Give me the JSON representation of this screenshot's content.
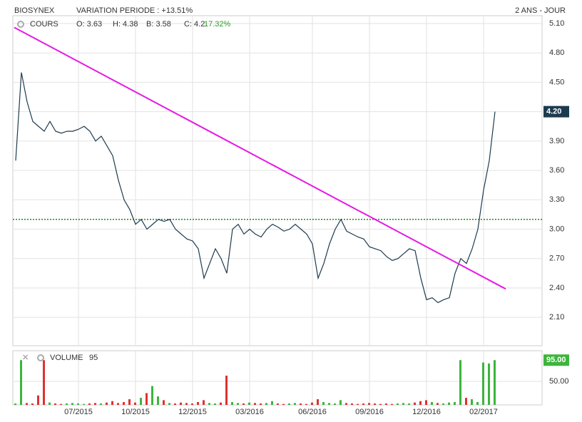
{
  "header": {
    "title": "BIOSYNEX",
    "variation": "VARIATION PERIODE : +13.51%",
    "period": "2 ANS - JOUR"
  },
  "chart_data": [
    {
      "type": "line",
      "name": "COURS",
      "ohlc_labels": {
        "open": "O: 3.63",
        "high": "H: 4.38",
        "low": "B: 3.58",
        "close": "C: 4.2",
        "change": "17.32%"
      },
      "last_value_label": "4.20",
      "color": "#1d3b4f",
      "change_color": "#2a9d2a",
      "categories": [
        null,
        null,
        null,
        null,
        null,
        null,
        null,
        null,
        null,
        null,
        null,
        "07/2015",
        null,
        null,
        null,
        null,
        null,
        null,
        null,
        null,
        null,
        "10/2015",
        null,
        null,
        null,
        null,
        null,
        null,
        null,
        null,
        null,
        "12/2015",
        null,
        null,
        null,
        null,
        null,
        null,
        null,
        null,
        null,
        "03/2016",
        null,
        null,
        null,
        null,
        null,
        null,
        null,
        null,
        null,
        null,
        "06/2016",
        null,
        null,
        null,
        null,
        null,
        null,
        null,
        null,
        null,
        "09/2016",
        null,
        null,
        null,
        null,
        null,
        null,
        null,
        null,
        null,
        "12/2016",
        null,
        null,
        null,
        null,
        null,
        null,
        null,
        null,
        null,
        "02/2017",
        null,
        null
      ],
      "values": [
        3.7,
        4.6,
        4.3,
        4.1,
        4.05,
        4.0,
        4.1,
        4.0,
        3.98,
        4.0,
        4.0,
        4.02,
        4.05,
        4.0,
        3.9,
        3.95,
        3.85,
        3.75,
        3.5,
        3.3,
        3.2,
        3.05,
        3.1,
        3.0,
        3.05,
        3.1,
        3.08,
        3.1,
        3.0,
        2.95,
        2.9,
        2.88,
        2.8,
        2.5,
        2.65,
        2.8,
        2.7,
        2.55,
        3.0,
        3.05,
        2.95,
        3.0,
        2.95,
        2.92,
        3.0,
        3.05,
        3.02,
        2.98,
        3.0,
        3.05,
        3.0,
        2.95,
        2.85,
        2.5,
        2.65,
        2.85,
        3.0,
        3.1,
        2.98,
        2.95,
        2.92,
        2.9,
        2.82,
        2.8,
        2.78,
        2.72,
        2.68,
        2.7,
        2.75,
        2.8,
        2.78,
        2.5,
        2.28,
        2.3,
        2.25,
        2.28,
        2.3,
        2.55,
        2.7,
        2.65,
        2.8,
        3.0,
        3.4,
        3.7,
        4.2
      ],
      "ylim": [
        1.81,
        5.18
      ],
      "yticks": [
        {
          "value": 2.1,
          "label": "2.10"
        },
        {
          "value": 2.4,
          "label": "2.40"
        },
        {
          "value": 2.7,
          "label": "2.70"
        },
        {
          "value": 3.0,
          "label": "3.00"
        },
        {
          "value": 3.3,
          "label": "3.30"
        },
        {
          "value": 3.6,
          "label": "3.60"
        },
        {
          "value": 3.9,
          "label": "3.90"
        },
        {
          "value": 4.2,
          "label": "4.20"
        },
        {
          "value": 4.5,
          "label": "4.50"
        },
        {
          "value": 4.8,
          "label": "4.80"
        },
        {
          "value": 5.1,
          "label": "5.10"
        }
      ],
      "grid": true,
      "trendline": {
        "x": [
          0,
          86
        ],
        "values": [
          5.06,
          2.39
        ],
        "color": "#e619e6"
      },
      "hline": {
        "value": 3.1,
        "color": "#1a8a1a"
      }
    },
    {
      "type": "bar",
      "name": "VOLUME",
      "last_label": "95",
      "last_value_label": "95.00",
      "up_color": "#3cb53c",
      "down_color": "#e03030",
      "values": [
        3,
        95,
        4,
        3,
        20,
        95,
        5,
        3,
        2,
        3,
        4,
        3,
        2,
        3,
        4,
        3,
        5,
        8,
        4,
        6,
        12,
        5,
        15,
        25,
        40,
        18,
        10,
        4,
        3,
        5,
        4,
        3,
        6,
        10,
        4,
        3,
        5,
        62,
        6,
        4,
        3,
        5,
        4,
        3,
        4,
        8,
        3,
        2,
        3,
        4,
        3,
        2,
        5,
        12,
        6,
        4,
        3,
        10,
        4,
        3,
        2,
        3,
        4,
        3,
        2,
        3,
        2,
        3,
        4,
        3,
        5,
        8,
        10,
        6,
        4,
        3,
        5,
        6,
        95,
        15,
        12,
        6,
        90,
        88,
        95
      ],
      "ylim": [
        0,
        115
      ],
      "yticks": [
        {
          "value": 50,
          "label": "50.00"
        }
      ]
    }
  ]
}
